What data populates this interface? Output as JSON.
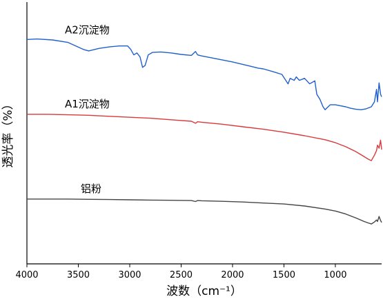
{
  "chart_data": {
    "type": "line",
    "title": "",
    "xlabel": "波数（cm⁻¹）",
    "ylabel": "透光率（%）",
    "xlim": [
      4000,
      550
    ],
    "x_reversed": true,
    "x_ticks": [
      4000,
      3500,
      3000,
      2500,
      2000,
      1500,
      1000
    ],
    "x_tick_labels": [
      "4000",
      "3500",
      "3000",
      "2500",
      "2000",
      "1500",
      "1000"
    ],
    "y_ticks": [],
    "grid": false,
    "legend": "none",
    "series": [
      {
        "name": "A2沉淀物",
        "color": "#1f5fcc",
        "x": [
          4000,
          3900,
          3750,
          3600,
          3450,
          3400,
          3300,
          3200,
          3100,
          3020,
          2990,
          2960,
          2930,
          2900,
          2875,
          2850,
          2820,
          2780,
          2700,
          2600,
          2500,
          2400,
          2360,
          2340,
          2300,
          2200,
          2000,
          1800,
          1750,
          1700,
          1600,
          1520,
          1460,
          1440,
          1400,
          1380,
          1350,
          1300,
          1250,
          1200,
          1180,
          1150,
          1120,
          1100,
          1080,
          1050,
          1000,
          950,
          900,
          850,
          800,
          750,
          700,
          650,
          620,
          600,
          590,
          575,
          560,
          550
        ],
        "y": [
          85.0,
          85.2,
          84.8,
          83.8,
          81.0,
          80.4,
          81.4,
          82.0,
          82.4,
          82.4,
          81.0,
          78.8,
          79.6,
          78.0,
          73.8,
          74.6,
          78.8,
          79.8,
          80.0,
          79.6,
          79.0,
          78.6,
          80.2,
          78.8,
          78.4,
          77.6,
          76.0,
          74.0,
          73.5,
          73.2,
          72.0,
          71.0,
          67.2,
          69.4,
          68.6,
          70.0,
          68.6,
          69.4,
          67.2,
          68.4,
          63.0,
          61.0,
          58.0,
          56.8,
          57.6,
          58.8,
          58.8,
          58.4,
          58.0,
          57.4,
          57.0,
          56.8,
          57.2,
          58.0,
          60.0,
          65.0,
          60.0,
          67.6,
          63.0,
          62.0
        ]
      },
      {
        "name": "A1沉淀物",
        "color": "#d9383a",
        "x": [
          4000,
          3800,
          3600,
          3400,
          3200,
          3000,
          2800,
          2600,
          2400,
          2360,
          2340,
          2300,
          2100,
          1900,
          1700,
          1500,
          1300,
          1100,
          1000,
          900,
          800,
          720,
          680,
          650,
          620,
          600,
          590,
          575,
          560,
          550
        ],
        "y": [
          55.0,
          55.0,
          54.8,
          54.6,
          54.2,
          53.8,
          53.4,
          52.8,
          52.2,
          51.4,
          52.0,
          51.8,
          51.0,
          50.0,
          49.0,
          47.8,
          46.4,
          44.8,
          43.6,
          42.0,
          40.0,
          38.0,
          37.0,
          36.4,
          38.6,
          40.4,
          42.6,
          41.4,
          44.6,
          40.8
        ]
      },
      {
        "name": "铝粉",
        "color": "#444444",
        "x": [
          4000,
          3800,
          3600,
          3400,
          3200,
          3000,
          2800,
          2600,
          2400,
          2360,
          2340,
          2300,
          2100,
          1900,
          1700,
          1500,
          1300,
          1100,
          1000,
          900,
          800,
          720,
          680,
          650,
          620,
          600,
          590,
          575,
          560,
          550
        ],
        "y": [
          21.0,
          21.0,
          21.0,
          20.9,
          20.8,
          20.7,
          20.6,
          20.5,
          20.4,
          20.0,
          20.4,
          20.3,
          20.1,
          19.8,
          19.4,
          19.0,
          18.2,
          17.0,
          16.2,
          15.0,
          13.4,
          12.0,
          11.4,
          11.0,
          11.8,
          12.6,
          12.0,
          14.0,
          12.4,
          11.6
        ]
      }
    ]
  }
}
